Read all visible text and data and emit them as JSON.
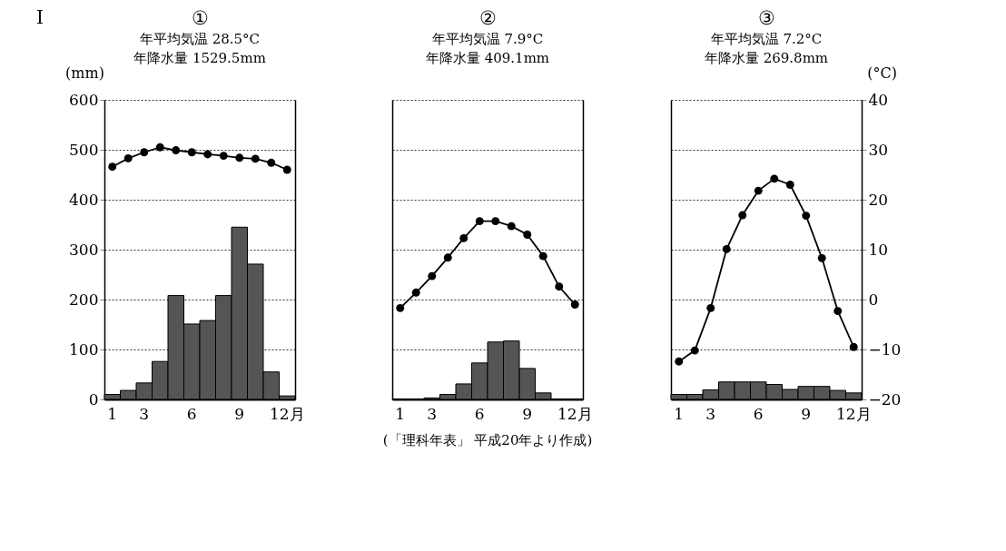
{
  "chart_data": [
    {
      "type": "bar",
      "title": "①",
      "subtitle": "年平均気温 28.5°C\n年降水量 1529.5mm",
      "ylabel": "(mm)",
      "categories": [
        "1",
        null,
        "3",
        null,
        null,
        "6",
        null,
        null,
        "9",
        null,
        null,
        "12月"
      ],
      "ylim": [
        0,
        600
      ],
      "yticks": [
        0,
        100,
        200,
        300,
        400,
        500,
        600
      ],
      "y2lim": [
        -20,
        40
      ],
      "grid": "y",
      "marker": "circle",
      "annotations": [
        "I"
      ],
      "series": [
        {
          "type": "bar",
          "color": "#555555",
          "values": [
            10,
            18,
            33,
            76,
            208,
            151,
            158,
            208,
            345,
            271,
            55,
            7
          ]
        },
        {
          "type": "line",
          "axis": "y2",
          "color": "#000000",
          "values": [
            26.6,
            28.3,
            29.5,
            30.5,
            29.9,
            29.5,
            29.1,
            28.8,
            28.4,
            28.2,
            27.4,
            26.0
          ]
        }
      ]
    },
    {
      "type": "bar",
      "title": "②",
      "subtitle": "年平均気温 7.9°C\n年降水量 409.1mm",
      "categories": [
        "1",
        null,
        "3",
        null,
        null,
        "6",
        null,
        null,
        "9",
        null,
        null,
        "12月"
      ],
      "ylim": [
        0,
        600
      ],
      "yticks": [
        0,
        100,
        200,
        300,
        400,
        500,
        600
      ],
      "y2lim": [
        -20,
        40
      ],
      "y2ticks": [
        -20,
        -10,
        0,
        10,
        20,
        30,
        40
      ],
      "grid": "y",
      "marker": "circle",
      "tick_labels": "x",
      "annotations": [
        "(「理科年表」 平成20年より作成)"
      ],
      "series": [
        {
          "type": "bar",
          "color": "#555555",
          "values": [
            1,
            1,
            3,
            10,
            31,
            73,
            115,
            117,
            62,
            13,
            1,
            1
          ]
        },
        {
          "type": "line",
          "axis": "y2",
          "color": "#000000",
          "values": [
            -1.7,
            1.4,
            4.7,
            8.4,
            12.3,
            15.7,
            15.7,
            14.7,
            13.0,
            8.7,
            2.6,
            -1.0
          ]
        }
      ]
    },
    {
      "type": "bar",
      "title": "③",
      "subtitle": "年平均気温 7.2°C\n年降水量 269.8mm",
      "y2label": "(°C)",
      "categories": [
        "1",
        null,
        "3",
        null,
        null,
        "6",
        null,
        null,
        "9",
        null,
        null,
        "12月"
      ],
      "ylim": [
        0,
        600
      ],
      "y2lim": [
        -20,
        40
      ],
      "y2ticks": [
        -20,
        -10,
        0,
        10,
        20,
        30,
        40
      ],
      "grid": "y2",
      "marker": "circle",
      "series": [
        {
          "type": "bar",
          "color": "#555555",
          "values": [
            10,
            10,
            19,
            35,
            35,
            35,
            30,
            20,
            26,
            26,
            18,
            13
          ]
        },
        {
          "type": "line",
          "axis": "y2",
          "color": "#000000",
          "values": [
            -12.4,
            -10.2,
            -1.7,
            10.1,
            16.9,
            21.8,
            24.2,
            23.0,
            16.8,
            8.3,
            -2.3,
            -9.5
          ]
        }
      ]
    }
  ]
}
